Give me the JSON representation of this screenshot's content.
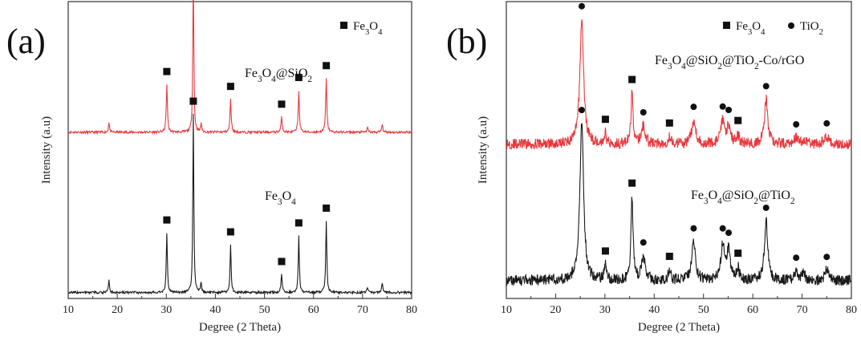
{
  "figure": {
    "panels": [
      {
        "label": "(a)",
        "xlabel": "Degree (2 Theta)",
        "ylabel": "Intensity (a.u)",
        "legend": [
          {
            "marker": "square",
            "text": "Fe3O4",
            "parts": [
              [
                "Fe",
                ""
              ],
              [
                "3",
                "sub"
              ],
              [
                "O",
                ""
              ],
              [
                "4",
                "sub"
              ]
            ]
          }
        ]
      },
      {
        "label": "(b)",
        "xlabel": "Degree (2 Theta)",
        "ylabel": "Intensity (a.u)",
        "legend": [
          {
            "marker": "square",
            "text": "Fe3O4",
            "parts": [
              [
                "Fe",
                ""
              ],
              [
                "3",
                "sub"
              ],
              [
                "O",
                ""
              ],
              [
                "4",
                "sub"
              ]
            ]
          },
          {
            "marker": "circle",
            "text": "TiO2",
            "parts": [
              [
                "TiO",
                ""
              ],
              [
                "2",
                "sub"
              ]
            ]
          }
        ]
      }
    ]
  },
  "colors": {
    "red_series": "#e8383d",
    "black_series": "#1a1a1a",
    "marker": "#111111"
  },
  "chart_data": [
    {
      "type": "line",
      "panel": "(a)",
      "title": "",
      "xlabel": "Degree (2 Theta)",
      "ylabel": "Intensity (a.u)",
      "xlim": [
        10,
        80
      ],
      "xticks": [
        10,
        20,
        30,
        40,
        50,
        60,
        70,
        80
      ],
      "ylim": [
        0,
        10
      ],
      "yticks_shown": false,
      "grid": false,
      "legend_position": "top-right",
      "series": [
        {
          "name": "Fe3O4@SiO2",
          "label_parts": [
            [
              "Fe",
              ""
            ],
            [
              "3",
              "sub"
            ],
            [
              "O",
              ""
            ],
            [
              "4",
              "sub"
            ],
            [
              "@SiO",
              ""
            ],
            [
              "2",
              "sub"
            ]
          ],
          "color": "#e8383d",
          "baseline": 5.6,
          "noise": 0.04,
          "peaks": [
            [
              18.3,
              0.35,
              0.12
            ],
            [
              30.1,
              1.6,
              0.14
            ],
            [
              35.5,
              5.4,
              0.12
            ],
            [
              37.1,
              0.3,
              0.12
            ],
            [
              43.1,
              1.1,
              0.14
            ],
            [
              53.5,
              0.5,
              0.15
            ],
            [
              57.0,
              1.4,
              0.14
            ],
            [
              62.6,
              1.8,
              0.14
            ],
            [
              71.0,
              0.15,
              0.15
            ],
            [
              74.0,
              0.25,
              0.15
            ]
          ],
          "markers": [
            {
              "x": 30.1,
              "type": "square"
            },
            {
              "x": 35.5,
              "type": "square"
            },
            {
              "x": 43.1,
              "type": "square"
            },
            {
              "x": 53.5,
              "type": "square"
            },
            {
              "x": 57.0,
              "type": "square"
            },
            {
              "x": 62.6,
              "type": "square"
            }
          ]
        },
        {
          "name": "Fe3O4",
          "label_parts": [
            [
              "Fe",
              ""
            ],
            [
              "3",
              "sub"
            ],
            [
              "O",
              ""
            ],
            [
              "4",
              "sub"
            ]
          ],
          "color": "#1a1a1a",
          "baseline": 0.2,
          "noise": 0.04,
          "peaks": [
            [
              18.3,
              0.45,
              0.12
            ],
            [
              30.1,
              2.0,
              0.13
            ],
            [
              35.5,
              6.0,
              0.12
            ],
            [
              37.1,
              0.35,
              0.12
            ],
            [
              43.1,
              1.6,
              0.13
            ],
            [
              53.5,
              0.6,
              0.15
            ],
            [
              57.0,
              1.9,
              0.13
            ],
            [
              62.6,
              2.4,
              0.13
            ],
            [
              71.0,
              0.15,
              0.15
            ],
            [
              74.0,
              0.3,
              0.15
            ]
          ],
          "markers": [
            {
              "x": 30.1,
              "type": "square"
            },
            {
              "x": 35.5,
              "type": "square"
            },
            {
              "x": 43.1,
              "type": "square"
            },
            {
              "x": 53.5,
              "type": "square"
            },
            {
              "x": 57.0,
              "type": "square"
            },
            {
              "x": 62.6,
              "type": "square"
            }
          ]
        }
      ]
    },
    {
      "type": "line",
      "panel": "(b)",
      "title": "",
      "xlabel": "Degree (2 Theta)",
      "ylabel": "Intensity (a.u)",
      "xlim": [
        10,
        80
      ],
      "xticks": [
        10,
        20,
        30,
        40,
        50,
        60,
        70,
        80
      ],
      "ylim": [
        0,
        10
      ],
      "yticks_shown": false,
      "grid": false,
      "legend_position": "top-right",
      "series": [
        {
          "name": "Fe3O4@SiO2@TiO2-Co/rGO",
          "label_parts": [
            [
              "Fe",
              ""
            ],
            [
              "3",
              "sub"
            ],
            [
              "O",
              ""
            ],
            [
              "4",
              "sub"
            ],
            [
              "@SiO",
              ""
            ],
            [
              "2",
              "sub"
            ],
            [
              "@TiO",
              ""
            ],
            [
              "2",
              "sub"
            ],
            [
              "-Co/rGO",
              ""
            ]
          ],
          "color": "#e8383d",
          "baseline": 5.2,
          "noise": 0.18,
          "peaks": [
            [
              25.3,
              4.2,
              0.45
            ],
            [
              30.1,
              0.35,
              0.25
            ],
            [
              35.5,
              1.7,
              0.25
            ],
            [
              37.8,
              0.6,
              0.45
            ],
            [
              43.1,
              0.25,
              0.3
            ],
            [
              48.0,
              0.8,
              0.45
            ],
            [
              53.9,
              0.75,
              0.45
            ],
            [
              55.1,
              0.6,
              0.4
            ],
            [
              57.0,
              0.3,
              0.3
            ],
            [
              62.7,
              1.5,
              0.4
            ],
            [
              68.8,
              0.2,
              0.45
            ],
            [
              70.3,
              0.15,
              0.45
            ],
            [
              75.0,
              0.25,
              0.5
            ]
          ],
          "markers": [
            {
              "x": 25.3,
              "type": "circle"
            },
            {
              "x": 30.1,
              "type": "square"
            },
            {
              "x": 35.5,
              "type": "square"
            },
            {
              "x": 37.8,
              "type": "circle"
            },
            {
              "x": 43.1,
              "type": "square"
            },
            {
              "x": 48.0,
              "type": "circle"
            },
            {
              "x": 53.9,
              "type": "circle"
            },
            {
              "x": 55.1,
              "type": "circle"
            },
            {
              "x": 57.0,
              "type": "square"
            },
            {
              "x": 62.7,
              "type": "circle"
            },
            {
              "x": 68.8,
              "type": "circle"
            },
            {
              "x": 75.0,
              "type": "circle"
            }
          ]
        },
        {
          "name": "Fe3O4@SiO2@TiO2",
          "label_parts": [
            [
              "Fe",
              ""
            ],
            [
              "3",
              "sub"
            ],
            [
              "O",
              ""
            ],
            [
              "4",
              "sub"
            ],
            [
              "@SiO",
              ""
            ],
            [
              "2",
              "sub"
            ],
            [
              "@TiO",
              ""
            ],
            [
              "2",
              "sub"
            ]
          ],
          "color": "#1a1a1a",
          "baseline": 0.6,
          "noise": 0.18,
          "peaks": [
            [
              25.3,
              5.3,
              0.45
            ],
            [
              30.1,
              0.5,
              0.25
            ],
            [
              35.5,
              2.8,
              0.25
            ],
            [
              37.8,
              0.8,
              0.45
            ],
            [
              43.1,
              0.35,
              0.3
            ],
            [
              48.0,
              1.3,
              0.45
            ],
            [
              53.9,
              1.2,
              0.45
            ],
            [
              55.1,
              1.0,
              0.4
            ],
            [
              57.0,
              0.4,
              0.3
            ],
            [
              62.7,
              2.0,
              0.4
            ],
            [
              68.8,
              0.3,
              0.45
            ],
            [
              70.3,
              0.2,
              0.45
            ],
            [
              75.0,
              0.35,
              0.5
            ]
          ],
          "markers": [
            {
              "x": 25.3,
              "type": "circle"
            },
            {
              "x": 30.1,
              "type": "square"
            },
            {
              "x": 35.5,
              "type": "square"
            },
            {
              "x": 37.8,
              "type": "circle"
            },
            {
              "x": 43.1,
              "type": "square"
            },
            {
              "x": 48.0,
              "type": "circle"
            },
            {
              "x": 53.9,
              "type": "circle"
            },
            {
              "x": 55.1,
              "type": "circle"
            },
            {
              "x": 57.0,
              "type": "square"
            },
            {
              "x": 62.7,
              "type": "circle"
            },
            {
              "x": 68.8,
              "type": "circle"
            },
            {
              "x": 75.0,
              "type": "circle"
            }
          ]
        }
      ]
    }
  ]
}
